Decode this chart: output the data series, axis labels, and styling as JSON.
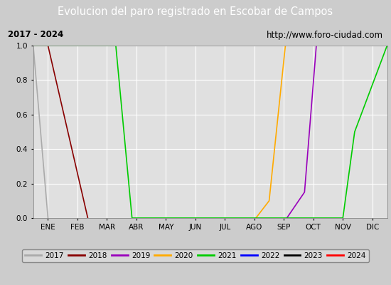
{
  "title": "Evolucion del paro registrado en Escobar de Campos",
  "title_color": "#ffffff",
  "title_bg": "#4477cc",
  "subtitle_left": "2017 - 2024",
  "subtitle_right": "http://www.foro-ciudad.com",
  "xlabel_months": [
    "ENE",
    "FEB",
    "MAR",
    "ABR",
    "MAY",
    "JUN",
    "JUL",
    "AGO",
    "SEP",
    "OCT",
    "NOV",
    "DIC"
  ],
  "ylim": [
    0.0,
    1.0
  ],
  "xlim": [
    0,
    12
  ],
  "yticks": [
    0.0,
    0.2,
    0.4,
    0.6,
    0.8,
    1.0
  ],
  "fig_bg": "#cccccc",
  "plot_bg": "#e0e0e0",
  "grid_color": "#ffffff",
  "series": [
    {
      "label": "2017",
      "color": "#aaaaaa",
      "x": [
        0.0,
        0.05,
        0.5
      ],
      "y": [
        1.0,
        0.9,
        0.0
      ]
    },
    {
      "label": "2018",
      "color": "#880000",
      "x": [
        0.0,
        0.5,
        1.85
      ],
      "y": [
        1.0,
        1.0,
        0.0
      ]
    },
    {
      "label": "2019",
      "color": "#9900bb",
      "x": [
        8.6,
        9.2,
        9.6
      ],
      "y": [
        0.0,
        0.15,
        1.0
      ]
    },
    {
      "label": "2020",
      "color": "#ffaa00",
      "x": [
        7.55,
        8.0,
        8.55
      ],
      "y": [
        0.0,
        0.1,
        1.0
      ]
    },
    {
      "label": "2021",
      "color": "#00cc00",
      "x": [
        0.0,
        0.5,
        2.8,
        3.35,
        10.5,
        10.9,
        12.0
      ],
      "y": [
        1.0,
        1.0,
        1.0,
        0.0,
        0.0,
        0.5,
        1.0
      ]
    },
    {
      "label": "2022",
      "color": "#0000ff",
      "x": [],
      "y": []
    },
    {
      "label": "2023",
      "color": "#000000",
      "x": [],
      "y": []
    },
    {
      "label": "2024",
      "color": "#ff0000",
      "x": [],
      "y": []
    }
  ]
}
